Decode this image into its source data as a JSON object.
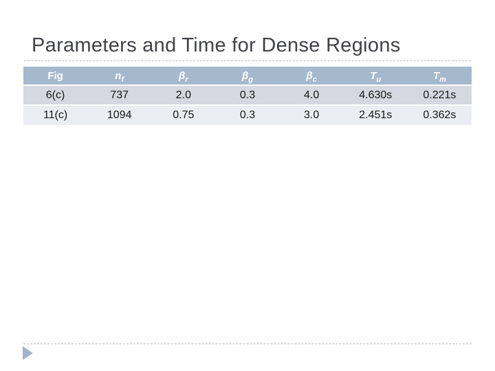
{
  "slide": {
    "title": "Parameters and Time for Dense Regions"
  },
  "table": {
    "columns": [
      {
        "base": "Fig",
        "sub": ""
      },
      {
        "base": "n",
        "sub": "f"
      },
      {
        "base": "β",
        "sub": "r"
      },
      {
        "base": "β",
        "sub": "g"
      },
      {
        "base": "β",
        "sub": "c"
      },
      {
        "base": "T",
        "sub": "u"
      },
      {
        "base": "T",
        "sub": "m"
      }
    ],
    "rows": [
      {
        "cells": [
          "6(c)",
          "737",
          "2.0",
          "0.3",
          "4.0",
          "4.630s",
          "0.221s"
        ]
      },
      {
        "cells": [
          "11(c)",
          "1094",
          "0.75",
          "0.3",
          "3.0",
          "2.451s",
          "0.362s"
        ]
      }
    ]
  },
  "colors": {
    "header_bg": "#a5b9cd",
    "header_text": "#ffffff",
    "row_odd_bg": "#d5d8e0",
    "row_even_bg": "#ecedf3",
    "title_text": "#414247",
    "divider": "#b5bac1",
    "arrow": "#a0b5ca"
  },
  "icons": {
    "footer_arrow": "right-triangle-icon"
  }
}
